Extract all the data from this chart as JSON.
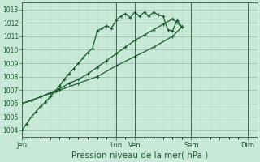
{
  "title": "Pression niveau de la mer( hPa )",
  "bg_color": "#c8e8d8",
  "grid_color_major": "#99bbaa",
  "grid_color_minor": "#bbddcc",
  "line_color": "#1a5c2a",
  "ylim": [
    1003.5,
    1013.5
  ],
  "yticks": [
    1004,
    1005,
    1006,
    1007,
    1008,
    1009,
    1010,
    1011,
    1012,
    1013
  ],
  "day_labels": [
    "Jeu",
    "Lun",
    "Ven",
    "Sam",
    "Dim"
  ],
  "day_positions": [
    0,
    60,
    72,
    108,
    144
  ],
  "xlim": [
    0,
    150
  ],
  "vline_positions": [
    60,
    72,
    108,
    144
  ],
  "series1_x": [
    0,
    3,
    6,
    9,
    12,
    15,
    18,
    21,
    24,
    27,
    30,
    33,
    36,
    39,
    42,
    45,
    48,
    51,
    54,
    57,
    60,
    63,
    66,
    69,
    72,
    75,
    78,
    81,
    84,
    87,
    90,
    93,
    96,
    99,
    102
  ],
  "series1_y": [
    1004.0,
    1004.5,
    1005.0,
    1005.4,
    1005.8,
    1006.1,
    1006.5,
    1006.9,
    1007.3,
    1007.8,
    1008.2,
    1008.6,
    1009.0,
    1009.4,
    1009.8,
    1010.1,
    1011.4,
    1011.6,
    1011.8,
    1011.6,
    1012.2,
    1012.5,
    1012.7,
    1012.4,
    1012.8,
    1012.5,
    1012.8,
    1012.5,
    1012.8,
    1012.6,
    1012.5,
    1011.5,
    1011.4,
    1012.2,
    1011.7
  ],
  "series2_x": [
    0,
    6,
    12,
    18,
    24,
    30,
    36,
    42,
    48,
    54,
    60,
    66,
    72,
    78,
    84,
    90,
    96,
    102
  ],
  "series2_y": [
    1006.0,
    1006.2,
    1006.5,
    1006.8,
    1007.1,
    1007.5,
    1007.8,
    1008.2,
    1008.7,
    1009.2,
    1009.7,
    1010.2,
    1010.7,
    1011.1,
    1011.5,
    1011.9,
    1012.3,
    1011.7
  ],
  "series3_x": [
    0,
    12,
    24,
    36,
    48,
    60,
    72,
    84,
    96,
    102
  ],
  "series3_y": [
    1006.0,
    1006.5,
    1007.0,
    1007.5,
    1008.0,
    1008.8,
    1009.5,
    1010.2,
    1011.0,
    1011.7
  ],
  "marker_size": 2.5,
  "line_width": 0.9,
  "title_fontsize": 7.5,
  "tick_fontsize": 5.5,
  "xtick_fontsize": 6.0
}
